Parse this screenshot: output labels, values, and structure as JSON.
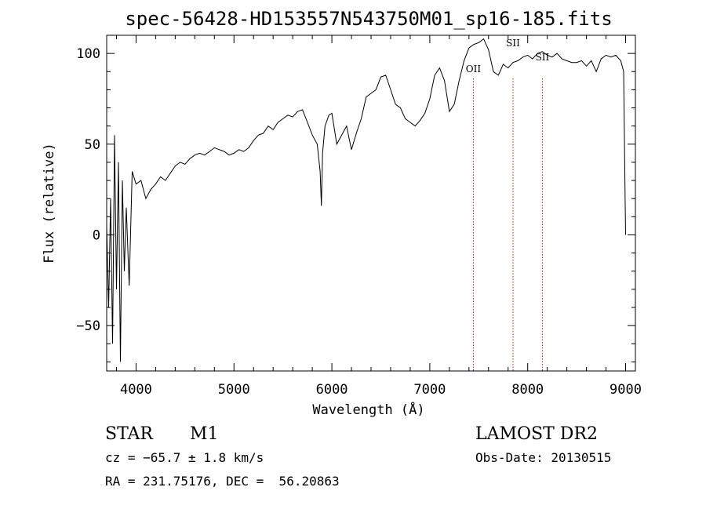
{
  "chart_data": {
    "type": "line",
    "title": "spec-56428-HD153557N543750M01_sp16-185.fits",
    "xlabel": "Wavelength (Å)",
    "ylabel": "Flux (relative)",
    "xlim": [
      3700,
      9100
    ],
    "ylim": [
      -75,
      110
    ],
    "xticks": [
      4000,
      5000,
      6000,
      7000,
      8000,
      9000
    ],
    "yticks": [
      -50,
      0,
      50,
      100
    ],
    "grid": false,
    "line_color": "#000000",
    "marker_color": "#b22222",
    "series": [
      {
        "x": [
          3700,
          3720,
          3740,
          3760,
          3780,
          3800,
          3820,
          3840,
          3860,
          3880,
          3900,
          3930,
          3960,
          4000,
          4050,
          4100,
          4150,
          4200,
          4250,
          4300,
          4350,
          4400,
          4450,
          4500,
          4550,
          4600,
          4650,
          4700,
          4750,
          4800,
          4850,
          4900,
          4950,
          5000,
          5050,
          5100,
          5150,
          5200,
          5250,
          5300,
          5350,
          5400,
          5450,
          5500,
          5550,
          5600,
          5650,
          5700,
          5750,
          5800,
          5850,
          5880,
          5893,
          5905,
          5930,
          5970,
          6000,
          6050,
          6100,
          6150,
          6200,
          6250,
          6300,
          6350,
          6400,
          6450,
          6500,
          6550,
          6600,
          6650,
          6700,
          6750,
          6800,
          6850,
          6900,
          6950,
          7000,
          7050,
          7100,
          7150,
          7200,
          7250,
          7300,
          7350,
          7400,
          7450,
          7500,
          7550,
          7600,
          7650,
          7700,
          7750,
          7800,
          7850,
          7900,
          7950,
          8000,
          8050,
          8100,
          8150,
          8200,
          8250,
          8300,
          8350,
          8400,
          8450,
          8500,
          8550,
          8600,
          8650,
          8700,
          8750,
          8800,
          8850,
          8900,
          8950,
          8980,
          8995,
          9000
        ],
        "y": [
          5,
          -40,
          20,
          -60,
          55,
          -30,
          40,
          -70,
          30,
          -20,
          15,
          -28,
          35,
          28,
          30,
          20,
          25,
          28,
          32,
          30,
          34,
          38,
          40,
          39,
          42,
          44,
          45,
          44,
          46,
          48,
          47,
          46,
          44,
          45,
          47,
          46,
          48,
          52,
          55,
          56,
          60,
          58,
          62,
          64,
          66,
          65,
          68,
          69,
          62,
          55,
          50,
          35,
          16,
          45,
          60,
          66,
          67,
          50,
          55,
          60,
          47,
          56,
          64,
          76,
          78,
          80,
          87,
          88,
          80,
          72,
          70,
          64,
          62,
          60,
          63,
          67,
          75,
          88,
          92,
          85,
          68,
          72,
          85,
          96,
          103,
          105,
          106,
          108,
          102,
          90,
          88,
          94,
          92,
          95,
          96,
          98,
          99,
          97,
          100,
          101,
          99,
          98,
          100,
          97,
          96,
          95,
          95,
          96,
          93,
          96,
          90,
          97,
          99,
          98,
          99,
          96,
          90,
          20,
          0
        ]
      }
    ],
    "line_markers": [
      {
        "label": "OII",
        "x": 7445
      },
      {
        "label": "SII",
        "x": 7850
      },
      {
        "label": "SII",
        "x": 8150
      }
    ]
  },
  "info": {
    "object_class": "STAR",
    "subclass": "M1",
    "cz": "cz = −65.7 ± 1.8 km/s",
    "coords": "RA = 231.75176, DEC =  56.20863",
    "survey": "LAMOST DR2",
    "obs_date": "Obs-Date: 20130515"
  }
}
